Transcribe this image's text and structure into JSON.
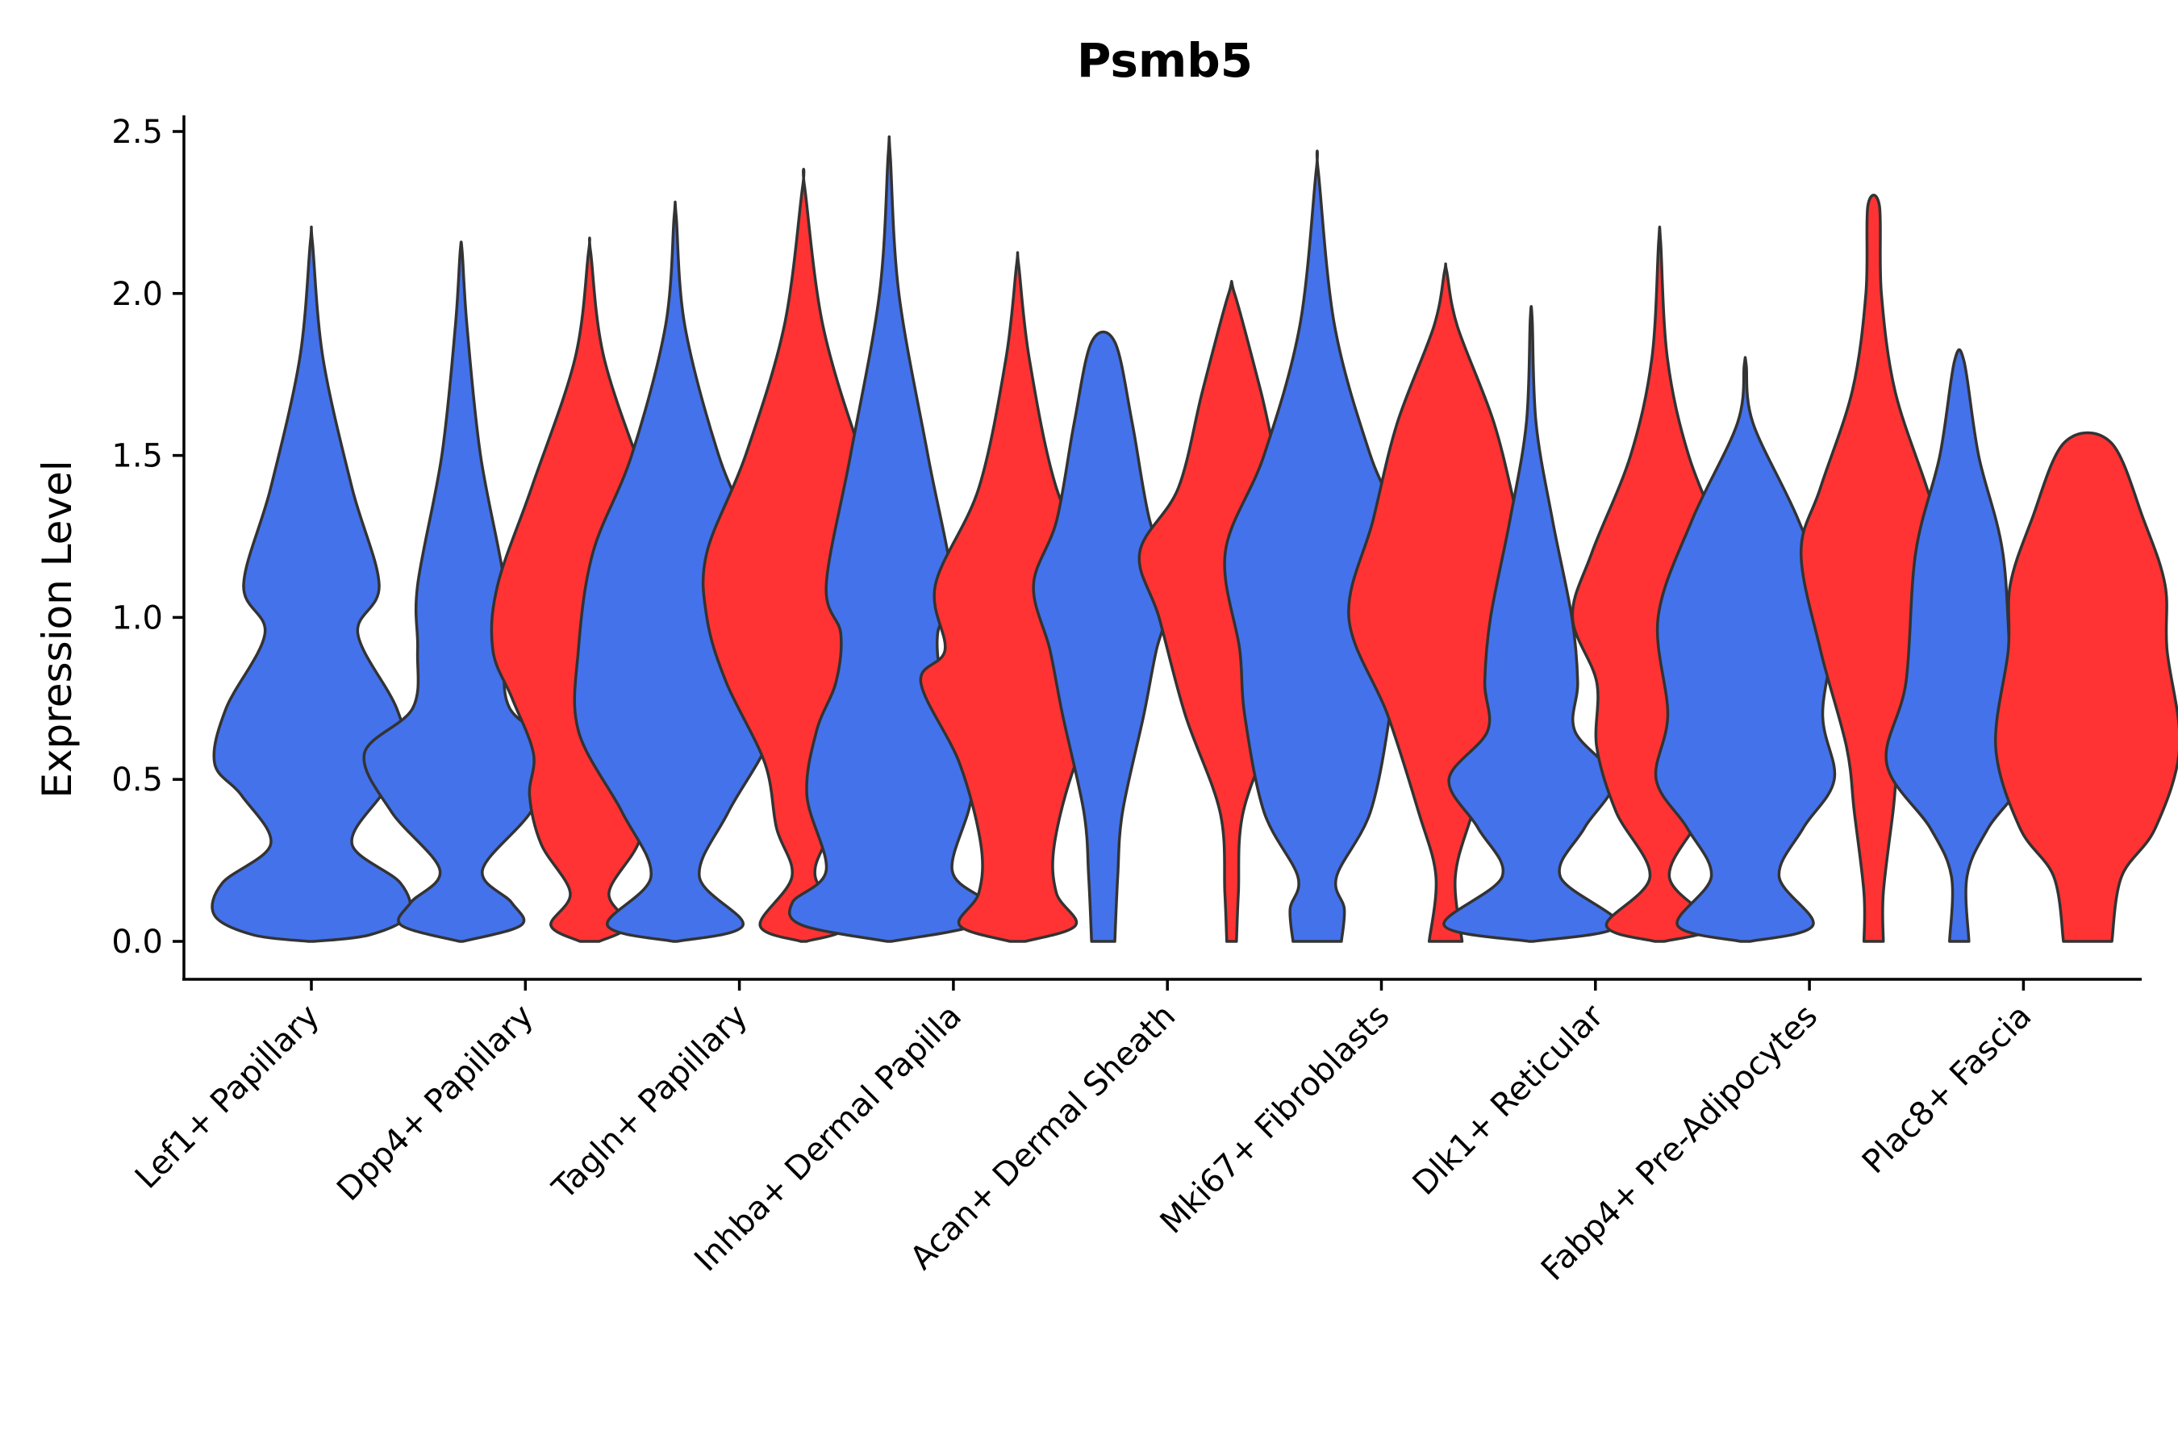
{
  "chart_data": {
    "type": "violin",
    "title": "Psmb5",
    "xlabel": "",
    "ylabel": "Expression Level",
    "ylim": [
      -0.12,
      2.56
    ],
    "yticks": [
      0.0,
      0.5,
      1.0,
      1.5,
      2.0,
      2.5
    ],
    "ytick_labels": [
      "0.0",
      "0.5",
      "1.0",
      "1.5",
      "2.0",
      "2.5"
    ],
    "categories": [
      "Lef1+ Papillary",
      "Dpp4+ Papillary",
      "Tagln+ Papillary",
      "Inhba+ Dermal Papilla",
      "Acan+ Dermal Sheath",
      "Mki67+ Fibroblasts",
      "Dlk1+ Reticular",
      "Fabp4+ Pre-Adipocytes",
      "Plac8+ Fascia"
    ],
    "colors": {
      "blue": "#4472EB",
      "red": "#FF3333"
    },
    "violins": [
      {
        "category": 0,
        "color": "blue",
        "offset": 0,
        "profile": [
          [
            0,
            0.03
          ],
          [
            0.02,
            0.6
          ],
          [
            0.08,
            1.0
          ],
          [
            0.18,
            0.92
          ],
          [
            0.3,
            0.42
          ],
          [
            0.45,
            0.72
          ],
          [
            0.55,
            1.0
          ],
          [
            0.72,
            0.88
          ],
          [
            0.95,
            0.48
          ],
          [
            1.1,
            0.7
          ],
          [
            1.4,
            0.42
          ],
          [
            1.8,
            0.12
          ],
          [
            2.16,
            0.01
          ]
        ]
      },
      {
        "category": 1,
        "color": "blue",
        "offset": -0.3,
        "profile": [
          [
            0,
            0.02
          ],
          [
            0.05,
            0.62
          ],
          [
            0.12,
            0.52
          ],
          [
            0.22,
            0.22
          ],
          [
            0.4,
            0.72
          ],
          [
            0.58,
            1.0
          ],
          [
            0.72,
            0.5
          ],
          [
            0.9,
            0.45
          ],
          [
            1.1,
            0.45
          ],
          [
            1.5,
            0.2
          ],
          [
            1.9,
            0.06
          ],
          [
            2.13,
            0.01
          ]
        ]
      },
      {
        "category": 1,
        "color": "red",
        "offset": 0.3,
        "profile": [
          [
            0,
            0.1
          ],
          [
            0.05,
            0.4
          ],
          [
            0.15,
            0.2
          ],
          [
            0.3,
            0.5
          ],
          [
            0.45,
            0.62
          ],
          [
            0.58,
            0.58
          ],
          [
            0.75,
            0.8
          ],
          [
            0.9,
            1.0
          ],
          [
            1.1,
            0.95
          ],
          [
            1.4,
            0.6
          ],
          [
            1.8,
            0.15
          ],
          [
            2.13,
            0.01
          ]
        ]
      },
      {
        "category": 2,
        "color": "blue",
        "offset": -0.3,
        "profile": [
          [
            0,
            0.02
          ],
          [
            0.05,
            0.7
          ],
          [
            0.2,
            0.25
          ],
          [
            0.4,
            0.55
          ],
          [
            0.65,
            1.0
          ],
          [
            0.9,
            1.0
          ],
          [
            1.2,
            0.85
          ],
          [
            1.5,
            0.45
          ],
          [
            1.9,
            0.1
          ],
          [
            2.24,
            0.01
          ]
        ]
      },
      {
        "category": 2,
        "color": "red",
        "offset": 0.3,
        "profile": [
          [
            0,
            0.03
          ],
          [
            0.05,
            0.45
          ],
          [
            0.2,
            0.12
          ],
          [
            0.35,
            0.28
          ],
          [
            0.55,
            0.4
          ],
          [
            0.8,
            0.8
          ],
          [
            1.0,
            1.0
          ],
          [
            1.2,
            1.0
          ],
          [
            1.5,
            0.6
          ],
          [
            1.9,
            0.2
          ],
          [
            2.33,
            0.01
          ]
        ]
      },
      {
        "category": 3,
        "color": "blue",
        "offset": -0.3,
        "profile": [
          [
            0,
            0.02
          ],
          [
            0.05,
            0.9
          ],
          [
            0.12,
            1.0
          ],
          [
            0.22,
            0.65
          ],
          [
            0.45,
            0.85
          ],
          [
            0.65,
            0.75
          ],
          [
            0.8,
            0.55
          ],
          [
            0.95,
            0.5
          ],
          [
            1.1,
            0.65
          ],
          [
            1.5,
            0.4
          ],
          [
            2.0,
            0.1
          ],
          [
            2.43,
            0.01
          ]
        ]
      },
      {
        "category": 3,
        "color": "red",
        "offset": 0.3,
        "profile": [
          [
            0,
            0.08
          ],
          [
            0.05,
            0.6
          ],
          [
            0.15,
            0.4
          ],
          [
            0.3,
            0.38
          ],
          [
            0.55,
            0.6
          ],
          [
            0.8,
            1.0
          ],
          [
            0.9,
            0.75
          ],
          [
            1.1,
            0.85
          ],
          [
            1.4,
            0.4
          ],
          [
            1.8,
            0.12
          ],
          [
            2.09,
            0.01
          ]
        ]
      },
      {
        "category": 4,
        "color": "blue",
        "offset": -0.3,
        "profile": [
          [
            0,
            0.12
          ],
          [
            0.2,
            0.15
          ],
          [
            0.4,
            0.2
          ],
          [
            0.7,
            0.42
          ],
          [
            0.9,
            0.55
          ],
          [
            1.1,
            0.72
          ],
          [
            1.3,
            0.48
          ],
          [
            1.6,
            0.3
          ],
          [
            1.85,
            0.12
          ]
        ]
      },
      {
        "category": 4,
        "color": "red",
        "offset": 0.3,
        "profile": [
          [
            0,
            0.05
          ],
          [
            0.15,
            0.07
          ],
          [
            0.4,
            0.12
          ],
          [
            0.7,
            0.48
          ],
          [
            1.0,
            0.75
          ],
          [
            1.2,
            0.95
          ],
          [
            1.4,
            0.55
          ],
          [
            1.7,
            0.3
          ],
          [
            2.0,
            0.03
          ]
        ]
      },
      {
        "category": 5,
        "color": "blue",
        "offset": -0.3,
        "profile": [
          [
            0,
            0.25
          ],
          [
            0.1,
            0.28
          ],
          [
            0.2,
            0.2
          ],
          [
            0.4,
            0.55
          ],
          [
            0.7,
            0.75
          ],
          [
            0.9,
            0.8
          ],
          [
            1.2,
            0.95
          ],
          [
            1.5,
            0.55
          ],
          [
            1.9,
            0.18
          ],
          [
            2.38,
            0.01
          ]
        ]
      },
      {
        "category": 5,
        "color": "red",
        "offset": 0.3,
        "profile": [
          [
            0,
            0.17
          ],
          [
            0.2,
            0.1
          ],
          [
            0.4,
            0.28
          ],
          [
            0.7,
            0.6
          ],
          [
            1.0,
            1.0
          ],
          [
            1.3,
            0.75
          ],
          [
            1.6,
            0.5
          ],
          [
            1.9,
            0.12
          ],
          [
            2.07,
            0.01
          ]
        ]
      },
      {
        "category": 6,
        "color": "blue",
        "offset": -0.3,
        "profile": [
          [
            0,
            0.02
          ],
          [
            0.05,
            0.9
          ],
          [
            0.2,
            0.3
          ],
          [
            0.35,
            0.55
          ],
          [
            0.5,
            0.85
          ],
          [
            0.65,
            0.45
          ],
          [
            0.8,
            0.48
          ],
          [
            1.0,
            0.42
          ],
          [
            1.3,
            0.22
          ],
          [
            1.6,
            0.05
          ],
          [
            1.92,
            0.01
          ]
        ]
      },
      {
        "category": 6,
        "color": "red",
        "offset": 0.3,
        "profile": [
          [
            0,
            0.05
          ],
          [
            0.05,
            0.55
          ],
          [
            0.2,
            0.1
          ],
          [
            0.4,
            0.45
          ],
          [
            0.6,
            0.65
          ],
          [
            0.8,
            0.65
          ],
          [
            1.0,
            0.9
          ],
          [
            1.2,
            0.7
          ],
          [
            1.5,
            0.3
          ],
          [
            1.8,
            0.08
          ],
          [
            2.16,
            0.01
          ]
        ]
      },
      {
        "category": 7,
        "color": "blue",
        "offset": -0.3,
        "profile": [
          [
            0,
            0.05
          ],
          [
            0.05,
            0.7
          ],
          [
            0.2,
            0.35
          ],
          [
            0.35,
            0.6
          ],
          [
            0.5,
            0.92
          ],
          [
            0.7,
            0.8
          ],
          [
            1.0,
            0.9
          ],
          [
            1.3,
            0.55
          ],
          [
            1.6,
            0.08
          ],
          [
            1.78,
            0.01
          ]
        ]
      },
      {
        "category": 7,
        "color": "red",
        "offset": 0.3,
        "profile": [
          [
            0,
            0.1
          ],
          [
            0.15,
            0.1
          ],
          [
            0.4,
            0.2
          ],
          [
            0.6,
            0.28
          ],
          [
            0.9,
            0.55
          ],
          [
            1.2,
            0.75
          ],
          [
            1.4,
            0.55
          ],
          [
            1.7,
            0.22
          ],
          [
            2.0,
            0.08
          ],
          [
            2.27,
            0.06
          ]
        ]
      },
      {
        "category": 8,
        "color": "blue",
        "offset": -0.3,
        "profile": [
          [
            0,
            0.1
          ],
          [
            0.2,
            0.08
          ],
          [
            0.35,
            0.3
          ],
          [
            0.55,
            0.75
          ],
          [
            0.8,
            0.55
          ],
          [
            1.2,
            0.45
          ],
          [
            1.5,
            0.2
          ],
          [
            1.79,
            0.05
          ]
        ]
      },
      {
        "category": 8,
        "color": "red",
        "offset": 0.3,
        "profile": [
          [
            0,
            0.25
          ],
          [
            0.2,
            0.35
          ],
          [
            0.35,
            0.7
          ],
          [
            0.6,
            0.95
          ],
          [
            0.9,
            0.82
          ],
          [
            1.1,
            0.8
          ],
          [
            1.3,
            0.58
          ],
          [
            1.54,
            0.24
          ]
        ]
      }
    ]
  }
}
